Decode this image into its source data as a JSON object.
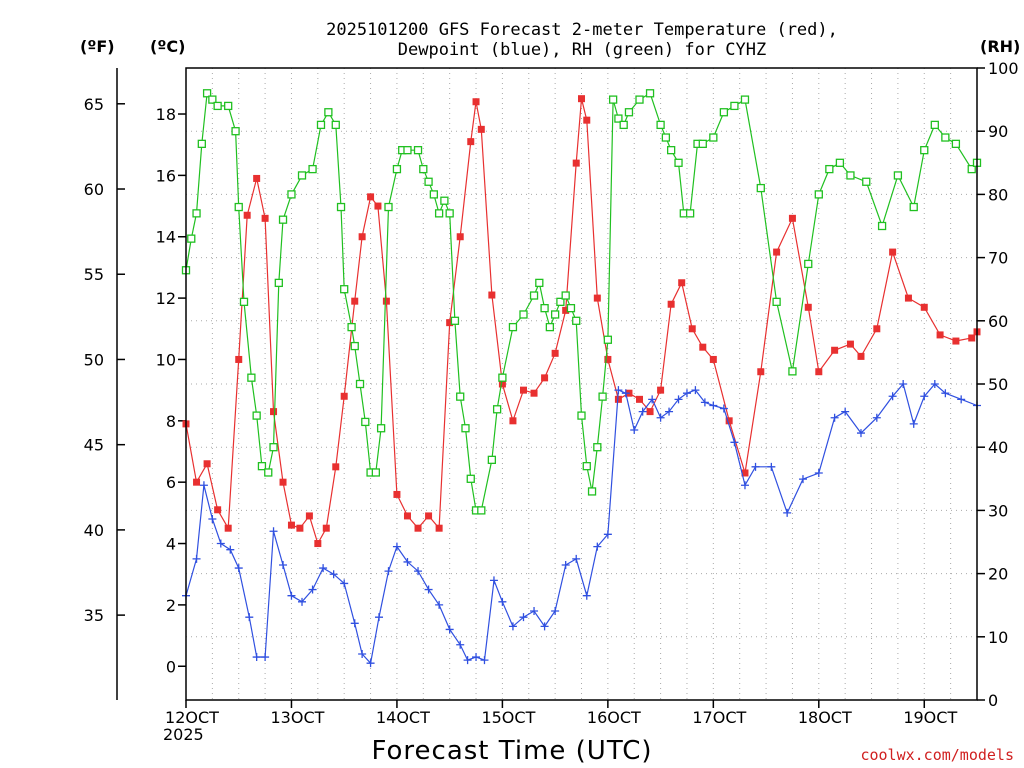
{
  "chart_data": {
    "type": "line",
    "title_line1": "2025101200 GFS Forecast 2-meter Temperature (red),",
    "title_line2": "Dewpoint (blue), RH (green) for CYHZ",
    "xlabel": "Forecast Time (UTC)",
    "credit": "coolwx.com/models",
    "unit_f": "(ºF)",
    "unit_c": "(ºC)",
    "unit_rh": "(RH)",
    "year_label": "2025",
    "xlim": [
      0,
      7.5
    ],
    "ylim_c": [
      -1.1,
      19.5
    ],
    "ylim_rh": [
      0,
      100
    ],
    "x_ticks": [
      {
        "x": 0,
        "label": "12OCT"
      },
      {
        "x": 1,
        "label": "13OCT"
      },
      {
        "x": 2,
        "label": "14OCT"
      },
      {
        "x": 3,
        "label": "15OCT"
      },
      {
        "x": 4,
        "label": "16OCT"
      },
      {
        "x": 5,
        "label": "17OCT"
      },
      {
        "x": 6,
        "label": "18OCT"
      },
      {
        "x": 7,
        "label": "19OCT"
      }
    ],
    "y_ticks_c": [
      "0",
      "2",
      "4",
      "6",
      "8",
      "10",
      "12",
      "14",
      "16",
      "18"
    ],
    "y_ticks_f": [
      "35",
      "40",
      "45",
      "50",
      "55",
      "60",
      "65"
    ],
    "y_ticks_rh": [
      "0",
      "10",
      "20",
      "30",
      "40",
      "50",
      "60",
      "70",
      "80",
      "90",
      "100"
    ],
    "series": [
      {
        "name": "Temperature (°C)",
        "color": "#e83030",
        "marker": "square-filled",
        "axis": "celsius",
        "points": [
          [
            0,
            7.9
          ],
          [
            0.1,
            6
          ],
          [
            0.2,
            6.6
          ],
          [
            0.3,
            5.1
          ],
          [
            0.4,
            4.5
          ],
          [
            0.5,
            10
          ],
          [
            0.58,
            14.7
          ],
          [
            0.67,
            15.9
          ],
          [
            0.75,
            14.6
          ],
          [
            0.83,
            8.3
          ],
          [
            0.92,
            6
          ],
          [
            1,
            4.6
          ],
          [
            1.08,
            4.5
          ],
          [
            1.17,
            4.9
          ],
          [
            1.25,
            4
          ],
          [
            1.33,
            4.5
          ],
          [
            1.42,
            6.5
          ],
          [
            1.5,
            8.8
          ],
          [
            1.6,
            11.9
          ],
          [
            1.67,
            14
          ],
          [
            1.75,
            15.3
          ],
          [
            1.82,
            15
          ],
          [
            1.9,
            11.9
          ],
          [
            2,
            5.6
          ],
          [
            2.1,
            4.9
          ],
          [
            2.2,
            4.5
          ],
          [
            2.3,
            4.9
          ],
          [
            2.4,
            4.5
          ],
          [
            2.5,
            11.2
          ],
          [
            2.6,
            14
          ],
          [
            2.7,
            17.1
          ],
          [
            2.75,
            18.4
          ],
          [
            2.8,
            17.5
          ],
          [
            2.9,
            12.1
          ],
          [
            3,
            9.2
          ],
          [
            3.1,
            8
          ],
          [
            3.2,
            9
          ],
          [
            3.3,
            8.9
          ],
          [
            3.4,
            9.4
          ],
          [
            3.5,
            10.2
          ],
          [
            3.6,
            11.6
          ],
          [
            3.7,
            16.4
          ],
          [
            3.75,
            18.5
          ],
          [
            3.8,
            17.8
          ],
          [
            3.9,
            12
          ],
          [
            4,
            10
          ],
          [
            4.1,
            8.7
          ],
          [
            4.2,
            8.9
          ],
          [
            4.3,
            8.7
          ],
          [
            4.4,
            8.3
          ],
          [
            4.5,
            9
          ],
          [
            4.6,
            11.8
          ],
          [
            4.7,
            12.5
          ],
          [
            4.8,
            11
          ],
          [
            4.9,
            10.4
          ],
          [
            5,
            10
          ],
          [
            5.15,
            8
          ],
          [
            5.3,
            6.3
          ],
          [
            5.45,
            9.6
          ],
          [
            5.6,
            13.5
          ],
          [
            5.75,
            14.6
          ],
          [
            5.9,
            11.7
          ],
          [
            6,
            9.6
          ],
          [
            6.15,
            10.3
          ],
          [
            6.3,
            10.5
          ],
          [
            6.4,
            10.1
          ],
          [
            6.55,
            11
          ],
          [
            6.7,
            13.5
          ],
          [
            6.85,
            12
          ],
          [
            7,
            11.7
          ],
          [
            7.15,
            10.8
          ],
          [
            7.3,
            10.6
          ],
          [
            7.45,
            10.7
          ],
          [
            7.5,
            10.9
          ]
        ]
      },
      {
        "name": "Dewpoint (°C)",
        "color": "#3050e0",
        "marker": "plus",
        "axis": "celsius",
        "points": [
          [
            0,
            2.3
          ],
          [
            0.1,
            3.5
          ],
          [
            0.17,
            5.9
          ],
          [
            0.25,
            4.8
          ],
          [
            0.33,
            4
          ],
          [
            0.42,
            3.8
          ],
          [
            0.5,
            3.2
          ],
          [
            0.6,
            1.6
          ],
          [
            0.67,
            0.3
          ],
          [
            0.75,
            0.3
          ],
          [
            0.83,
            4.4
          ],
          [
            0.92,
            3.3
          ],
          [
            1,
            2.3
          ],
          [
            1.1,
            2.1
          ],
          [
            1.2,
            2.5
          ],
          [
            1.3,
            3.2
          ],
          [
            1.4,
            3
          ],
          [
            1.5,
            2.7
          ],
          [
            1.6,
            1.4
          ],
          [
            1.67,
            0.4
          ],
          [
            1.75,
            0.1
          ],
          [
            1.83,
            1.6
          ],
          [
            1.92,
            3.1
          ],
          [
            2,
            3.9
          ],
          [
            2.1,
            3.4
          ],
          [
            2.2,
            3.1
          ],
          [
            2.3,
            2.5
          ],
          [
            2.4,
            2
          ],
          [
            2.5,
            1.2
          ],
          [
            2.6,
            0.7
          ],
          [
            2.67,
            0.2
          ],
          [
            2.75,
            0.3
          ],
          [
            2.83,
            0.2
          ],
          [
            2.92,
            2.8
          ],
          [
            3,
            2.1
          ],
          [
            3.1,
            1.3
          ],
          [
            3.2,
            1.6
          ],
          [
            3.3,
            1.8
          ],
          [
            3.4,
            1.3
          ],
          [
            3.5,
            1.8
          ],
          [
            3.6,
            3.3
          ],
          [
            3.7,
            3.5
          ],
          [
            3.8,
            2.3
          ],
          [
            3.9,
            3.9
          ],
          [
            4,
            4.3
          ],
          [
            4.1,
            9
          ],
          [
            4.17,
            8.9
          ],
          [
            4.25,
            7.7
          ],
          [
            4.33,
            8.3
          ],
          [
            4.42,
            8.7
          ],
          [
            4.5,
            8.1
          ],
          [
            4.58,
            8.3
          ],
          [
            4.67,
            8.7
          ],
          [
            4.75,
            8.9
          ],
          [
            4.83,
            9
          ],
          [
            4.92,
            8.6
          ],
          [
            5,
            8.5
          ],
          [
            5.1,
            8.4
          ],
          [
            5.2,
            7.3
          ],
          [
            5.3,
            5.9
          ],
          [
            5.4,
            6.5
          ],
          [
            5.55,
            6.5
          ],
          [
            5.7,
            5
          ],
          [
            5.85,
            6.1
          ],
          [
            6,
            6.3
          ],
          [
            6.15,
            8.1
          ],
          [
            6.25,
            8.3
          ],
          [
            6.4,
            7.6
          ],
          [
            6.55,
            8.1
          ],
          [
            6.7,
            8.8
          ],
          [
            6.8,
            9.2
          ],
          [
            6.9,
            7.9
          ],
          [
            7,
            8.8
          ],
          [
            7.1,
            9.2
          ],
          [
            7.2,
            8.9
          ],
          [
            7.35,
            8.7
          ],
          [
            7.5,
            8.5
          ]
        ]
      },
      {
        "name": "RH (%)",
        "color": "#20c020",
        "marker": "square-open",
        "axis": "rh",
        "points": [
          [
            0,
            68
          ],
          [
            0.05,
            73
          ],
          [
            0.1,
            77
          ],
          [
            0.15,
            88
          ],
          [
            0.2,
            96
          ],
          [
            0.25,
            95
          ],
          [
            0.3,
            94
          ],
          [
            0.4,
            94
          ],
          [
            0.47,
            90
          ],
          [
            0.5,
            78
          ],
          [
            0.55,
            63
          ],
          [
            0.62,
            51
          ],
          [
            0.67,
            45
          ],
          [
            0.72,
            37
          ],
          [
            0.78,
            36
          ],
          [
            0.83,
            40
          ],
          [
            0.88,
            66
          ],
          [
            0.92,
            76
          ],
          [
            1,
            80
          ],
          [
            1.1,
            83
          ],
          [
            1.2,
            84
          ],
          [
            1.28,
            91
          ],
          [
            1.35,
            93
          ],
          [
            1.42,
            91
          ],
          [
            1.47,
            78
          ],
          [
            1.5,
            65
          ],
          [
            1.57,
            59
          ],
          [
            1.6,
            56
          ],
          [
            1.65,
            50
          ],
          [
            1.7,
            44
          ],
          [
            1.75,
            36
          ],
          [
            1.8,
            36
          ],
          [
            1.85,
            43
          ],
          [
            1.92,
            78
          ],
          [
            2,
            84
          ],
          [
            2.05,
            87
          ],
          [
            2.1,
            87
          ],
          [
            2.2,
            87
          ],
          [
            2.25,
            84
          ],
          [
            2.3,
            82
          ],
          [
            2.35,
            80
          ],
          [
            2.4,
            77
          ],
          [
            2.45,
            79
          ],
          [
            2.5,
            77
          ],
          [
            2.55,
            60
          ],
          [
            2.6,
            48
          ],
          [
            2.65,
            43
          ],
          [
            2.7,
            35
          ],
          [
            2.75,
            30
          ],
          [
            2.8,
            30
          ],
          [
            2.9,
            38
          ],
          [
            2.95,
            46
          ],
          [
            3,
            51
          ],
          [
            3.1,
            59
          ],
          [
            3.2,
            61
          ],
          [
            3.3,
            64
          ],
          [
            3.35,
            66
          ],
          [
            3.4,
            62
          ],
          [
            3.45,
            59
          ],
          [
            3.5,
            61
          ],
          [
            3.55,
            63
          ],
          [
            3.6,
            64
          ],
          [
            3.65,
            62
          ],
          [
            3.7,
            60
          ],
          [
            3.75,
            45
          ],
          [
            3.8,
            37
          ],
          [
            3.85,
            33
          ],
          [
            3.9,
            40
          ],
          [
            3.95,
            48
          ],
          [
            4,
            57
          ],
          [
            4.05,
            95
          ],
          [
            4.1,
            92
          ],
          [
            4.15,
            91
          ],
          [
            4.2,
            93
          ],
          [
            4.3,
            95
          ],
          [
            4.4,
            96
          ],
          [
            4.5,
            91
          ],
          [
            4.55,
            89
          ],
          [
            4.6,
            87
          ],
          [
            4.67,
            85
          ],
          [
            4.72,
            77
          ],
          [
            4.78,
            77
          ],
          [
            4.85,
            88
          ],
          [
            4.9,
            88
          ],
          [
            5,
            89
          ],
          [
            5.1,
            93
          ],
          [
            5.2,
            94
          ],
          [
            5.3,
            95
          ],
          [
            5.45,
            81
          ],
          [
            5.6,
            63
          ],
          [
            5.75,
            52
          ],
          [
            5.9,
            69
          ],
          [
            6,
            80
          ],
          [
            6.1,
            84
          ],
          [
            6.2,
            85
          ],
          [
            6.3,
            83
          ],
          [
            6.45,
            82
          ],
          [
            6.6,
            75
          ],
          [
            6.75,
            83
          ],
          [
            6.9,
            78
          ],
          [
            7,
            87
          ],
          [
            7.1,
            91
          ],
          [
            7.2,
            89
          ],
          [
            7.3,
            88
          ],
          [
            7.45,
            84
          ],
          [
            7.5,
            85
          ]
        ]
      }
    ]
  }
}
